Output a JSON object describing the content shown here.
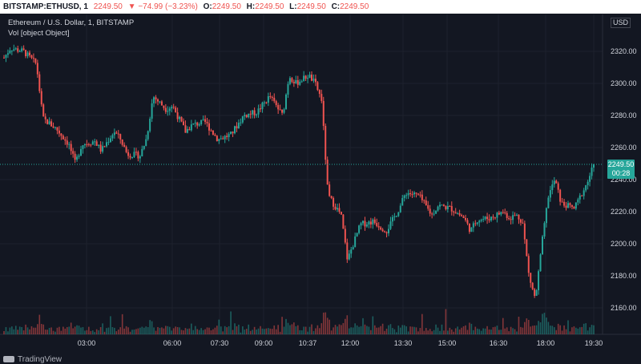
{
  "header": {
    "symbol": "BITSTAMP:ETHUSD, 1",
    "last": "2249.50",
    "change": "−74.99 (−3.23%)",
    "o_label": "O:",
    "o": "2249.50",
    "h_label": "H:",
    "h": "2249.50",
    "l_label": "L:",
    "l": "2249.50",
    "c_label": "C:",
    "c": "2249.50"
  },
  "legend": {
    "title": "Ethereum / U.S. Dollar, 1, BITSTAMP",
    "volume": "Vol [object Object]"
  },
  "price_axis": {
    "currency": "USD",
    "current_price": "2249.50",
    "countdown": "00:28",
    "ticks": [
      "2320.00",
      "2300.00",
      "2280.00",
      "2260.00",
      "2240.00",
      "2220.00",
      "2200.00",
      "2180.00",
      "2160.00"
    ]
  },
  "time_axis": {
    "ticks": [
      "03:00",
      "06:00",
      "07:30",
      "09:00",
      "10:37",
      "12:00",
      "13:30",
      "15:00",
      "16:30",
      "18:00",
      "19:30"
    ]
  },
  "branding": "TradingView",
  "colors": {
    "background": "#131722",
    "up": "#26a69a",
    "down": "#ef5350",
    "grid": "#1e222d",
    "price_line": "#26a69a"
  },
  "chart_data": {
    "type": "candlestick",
    "title": "Ethereum / U.S. Dollar, 1, BITSTAMP",
    "ylim": [
      2140,
      2330
    ],
    "y_ticks": [
      2320,
      2300,
      2280,
      2260,
      2240,
      2220,
      2200,
      2180,
      2160
    ],
    "x_ticks": [
      "03:00",
      "06:00",
      "07:30",
      "09:00",
      "10:37",
      "12:00",
      "13:30",
      "15:00",
      "16:30",
      "18:00",
      "19:30"
    ],
    "last_price": 2249.5,
    "path_close": [
      [
        0,
        2316
      ],
      [
        1,
        2322
      ],
      [
        3,
        2320
      ],
      [
        5,
        2312
      ],
      [
        6,
        2278
      ],
      [
        8,
        2272
      ],
      [
        10,
        2262
      ],
      [
        11,
        2250
      ],
      [
        12,
        2262
      ],
      [
        14,
        2264
      ],
      [
        15,
        2258
      ],
      [
        17,
        2270
      ],
      [
        18,
        2265
      ],
      [
        19,
        2256
      ],
      [
        21,
        2255
      ],
      [
        22,
        2266
      ],
      [
        23,
        2292
      ],
      [
        25,
        2284
      ],
      [
        26,
        2286
      ],
      [
        28,
        2270
      ],
      [
        29,
        2274
      ],
      [
        31,
        2276
      ],
      [
        33,
        2265
      ],
      [
        35,
        2268
      ],
      [
        37,
        2280
      ],
      [
        39,
        2282
      ],
      [
        41,
        2292
      ],
      [
        43,
        2280
      ],
      [
        44,
        2305
      ],
      [
        45,
        2300
      ],
      [
        47,
        2305
      ],
      [
        48,
        2300
      ],
      [
        49,
        2290
      ],
      [
        50,
        2230
      ],
      [
        52,
        2218
      ],
      [
        53,
        2190
      ],
      [
        55,
        2212
      ],
      [
        57,
        2214
      ],
      [
        59,
        2208
      ],
      [
        61,
        2222
      ],
      [
        62,
        2232
      ],
      [
        64,
        2230
      ],
      [
        66,
        2218
      ],
      [
        67,
        2224
      ],
      [
        69,
        2222
      ],
      [
        71,
        2216
      ],
      [
        72,
        2208
      ],
      [
        73,
        2215
      ],
      [
        75,
        2216
      ],
      [
        77,
        2220
      ],
      [
        78,
        2216
      ],
      [
        79,
        2218
      ],
      [
        80,
        2214
      ],
      [
        81,
        2180
      ],
      [
        82,
        2165
      ],
      [
        83,
        2200
      ],
      [
        84,
        2230
      ],
      [
        85,
        2240
      ],
      [
        86,
        2225
      ],
      [
        88,
        2222
      ],
      [
        89,
        2230
      ],
      [
        90,
        2238
      ],
      [
        91,
        2249.5
      ]
    ]
  }
}
